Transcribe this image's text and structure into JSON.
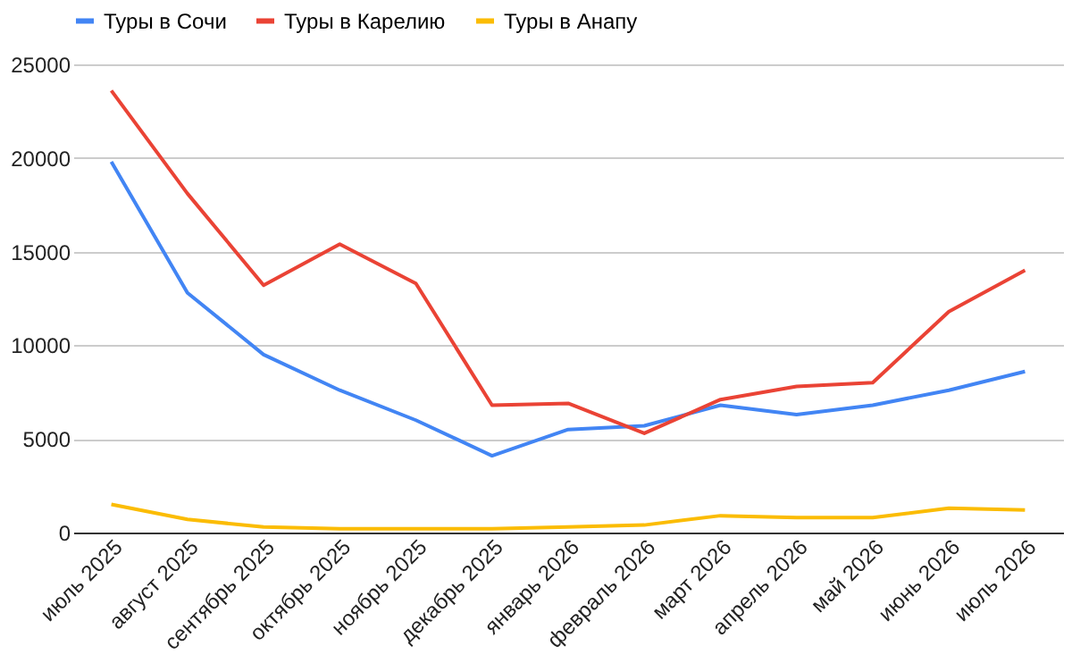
{
  "chart_data": {
    "type": "line",
    "categories": [
      "июль 2025",
      "август 2025",
      "сентябрь 2025",
      "октябрь 2025",
      "ноябрь 2025",
      "декабрь 2025",
      "январь 2026",
      "февраль 2026",
      "март 2026",
      "апрель 2026",
      "май 2026",
      "июнь 2026",
      "июль 2026"
    ],
    "series": [
      {
        "name": "Туры в Сочи",
        "color": "#4285f4",
        "values": [
          19800,
          12800,
          9500,
          7600,
          6000,
          4100,
          5500,
          5700,
          6800,
          6300,
          6800,
          7600,
          8600
        ]
      },
      {
        "name": "Туры в Карелию",
        "color": "#ea4335",
        "values": [
          23600,
          18100,
          13200,
          15400,
          13300,
          6800,
          6900,
          5300,
          7100,
          7800,
          8000,
          11800,
          14000
        ]
      },
      {
        "name": "Туры в Анапу",
        "color": "#fbbc04",
        "values": [
          1500,
          700,
          300,
          200,
          200,
          200,
          300,
          400,
          900,
          800,
          800,
          1300,
          1200
        ]
      }
    ],
    "ylim": [
      0,
      25000
    ],
    "yticks": [
      0,
      5000,
      10000,
      15000,
      20000,
      25000
    ],
    "grid": "y",
    "legend": "top",
    "marker": "none",
    "line_style": "solid"
  }
}
